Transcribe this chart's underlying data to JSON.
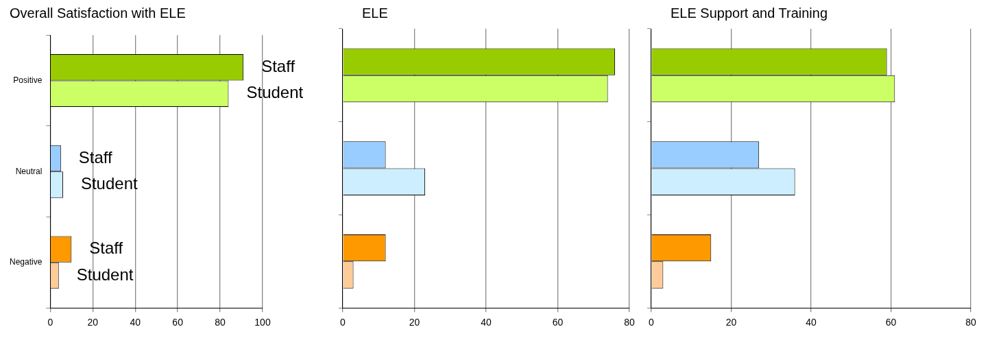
{
  "chart_data": [
    {
      "type": "bar",
      "title": "Overall Satisfaction with ELE",
      "orientation": "horizontal",
      "categories": [
        "Positive",
        "Neutral",
        "Negative"
      ],
      "xlim": [
        0,
        100
      ],
      "xticks": [
        0,
        20,
        40,
        60,
        80,
        100
      ],
      "grid": "x",
      "legend": false,
      "series": [
        {
          "name": "Staff",
          "colors": [
            "#99cc00",
            "#99ccff",
            "#ff9900"
          ],
          "values": [
            91,
            5,
            10
          ]
        },
        {
          "name": "Student",
          "colors": [
            "#ccff66",
            "#cceeff",
            "#ffcc99"
          ],
          "values": [
            84,
            6,
            4
          ]
        }
      ]
    },
    {
      "type": "bar",
      "title": "ELE",
      "orientation": "horizontal",
      "categories": [
        null,
        null,
        null
      ],
      "tick_labels": "x",
      "xlim": [
        0,
        80
      ],
      "xticks": [
        0,
        20,
        40,
        60,
        80
      ],
      "grid": "x",
      "legend": false,
      "series": [
        {
          "colors": [
            "#99cc00",
            "#99ccff",
            "#ff9900"
          ],
          "values": [
            76,
            12,
            12
          ]
        },
        {
          "colors": [
            "#ccff66",
            "#cceeff",
            "#ffcc99"
          ],
          "values": [
            74,
            23,
            3
          ]
        }
      ]
    },
    {
      "type": "bar",
      "title": "ELE Support and Training",
      "orientation": "horizontal",
      "categories": [
        null,
        null,
        null
      ],
      "tick_labels": "x",
      "xlim": [
        0,
        80
      ],
      "xticks": [
        0,
        20,
        40,
        60,
        80
      ],
      "grid": "x",
      "legend": false,
      "series": [
        {
          "colors": [
            "#99cc00",
            "#99ccff",
            "#ff9900"
          ],
          "values": [
            59,
            27,
            15
          ]
        },
        {
          "colors": [
            "#ccff66",
            "#cceeff",
            "#ffcc99"
          ],
          "values": [
            61,
            36,
            3
          ]
        }
      ]
    }
  ]
}
